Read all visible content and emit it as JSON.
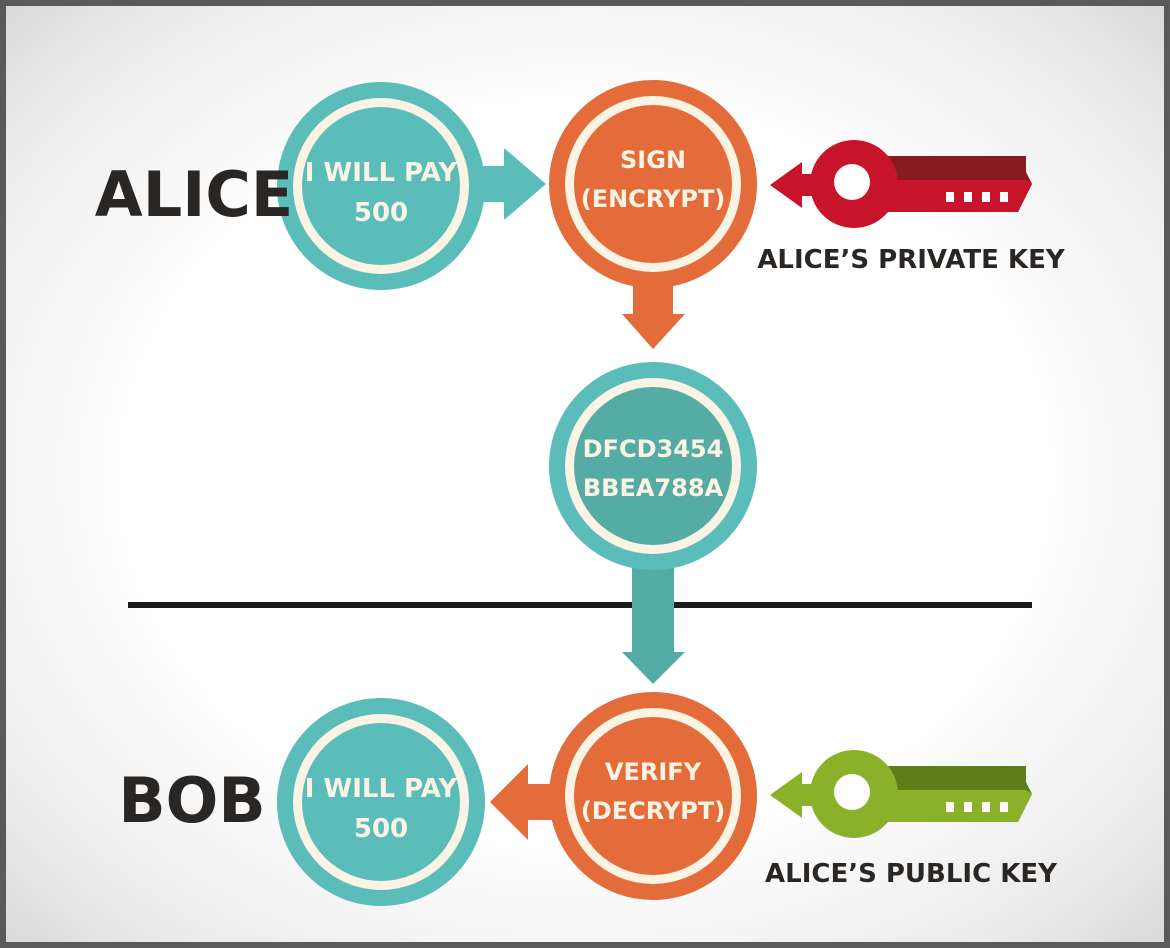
{
  "actors": {
    "alice": "ALICE",
    "bob": "BOB"
  },
  "nodes": {
    "alice_message": [
      "I WILL PAY",
      "500"
    ],
    "sign": [
      "SIGN",
      "(ENCRYPT)"
    ],
    "signature": [
      "DFCD3454",
      "BBEA788A"
    ],
    "verify": [
      "VERIFY",
      "(DECRYPT)"
    ],
    "bob_message": [
      "I WILL PAY",
      "500"
    ]
  },
  "keys": {
    "private": {
      "label": "ALICE’S PRIVATE KEY",
      "color": "#c8142a",
      "shaft": "#861c1f"
    },
    "public": {
      "label": "ALICE’S PUBLIC KEY",
      "color": "#8bb02a",
      "shaft": "#5f7e1a"
    }
  },
  "colors": {
    "teal": "#5bbdb9",
    "teal_dark": "#54aca4",
    "orange": "#e36c3a",
    "cream": "#fbf4e4",
    "ink": "#2a2623",
    "divider": "#1c1c1c"
  }
}
